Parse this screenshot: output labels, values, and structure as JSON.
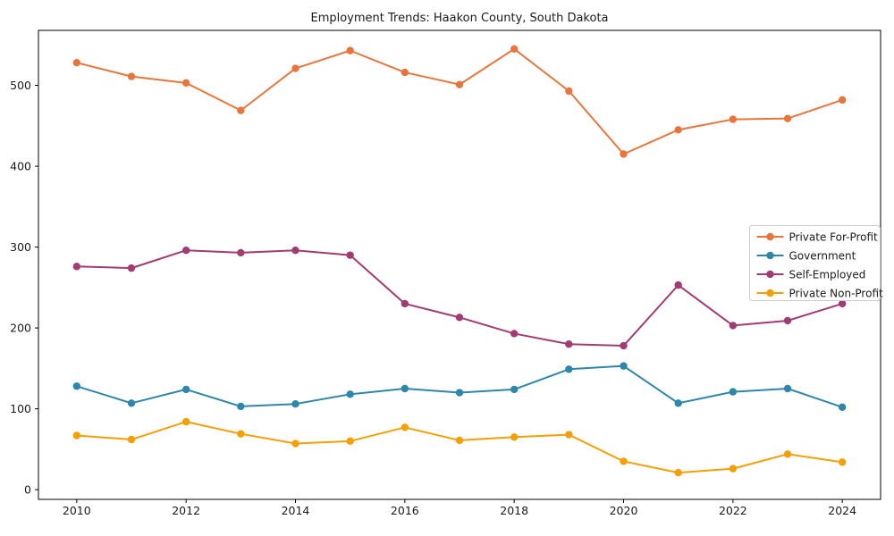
{
  "chart_data": {
    "type": "line",
    "title": "Employment Trends: Haakon County, South Dakota",
    "xlabel": "",
    "ylabel": "",
    "grid": false,
    "legend_position": "center right",
    "xlim": [
      2009.3,
      2024.7
    ],
    "ylim": [
      -12,
      568
    ],
    "xticks": [
      2010,
      2012,
      2014,
      2016,
      2018,
      2020,
      2022,
      2024
    ],
    "yticks": [
      0,
      100,
      200,
      300,
      400,
      500
    ],
    "x": [
      2010,
      2011,
      2012,
      2013,
      2014,
      2015,
      2016,
      2017,
      2018,
      2019,
      2020,
      2021,
      2022,
      2023,
      2024
    ],
    "series": [
      {
        "name": "Private For-Profit",
        "color": "#e8763c",
        "values": [
          528,
          511,
          503,
          469,
          521,
          543,
          516,
          501,
          545,
          493,
          415,
          445,
          458,
          459,
          482
        ]
      },
      {
        "name": "Government",
        "color": "#2e86ab",
        "values": [
          128,
          107,
          124,
          103,
          106,
          118,
          125,
          120,
          124,
          149,
          153,
          107,
          121,
          125,
          102
        ]
      },
      {
        "name": "Self-Employed",
        "color": "#a23b72",
        "values": [
          276,
          274,
          296,
          293,
          296,
          290,
          230,
          213,
          193,
          180,
          178,
          253,
          203,
          209,
          230
        ]
      },
      {
        "name": "Private Non-Profit",
        "color": "#f49f05",
        "values": [
          67,
          62,
          84,
          69,
          57,
          60,
          77,
          61,
          65,
          68,
          35,
          21,
          26,
          44,
          34
        ]
      }
    ],
    "frame_color": "#000000",
    "legend_border_color": "#cccccc",
    "background_color": "#ffffff"
  }
}
